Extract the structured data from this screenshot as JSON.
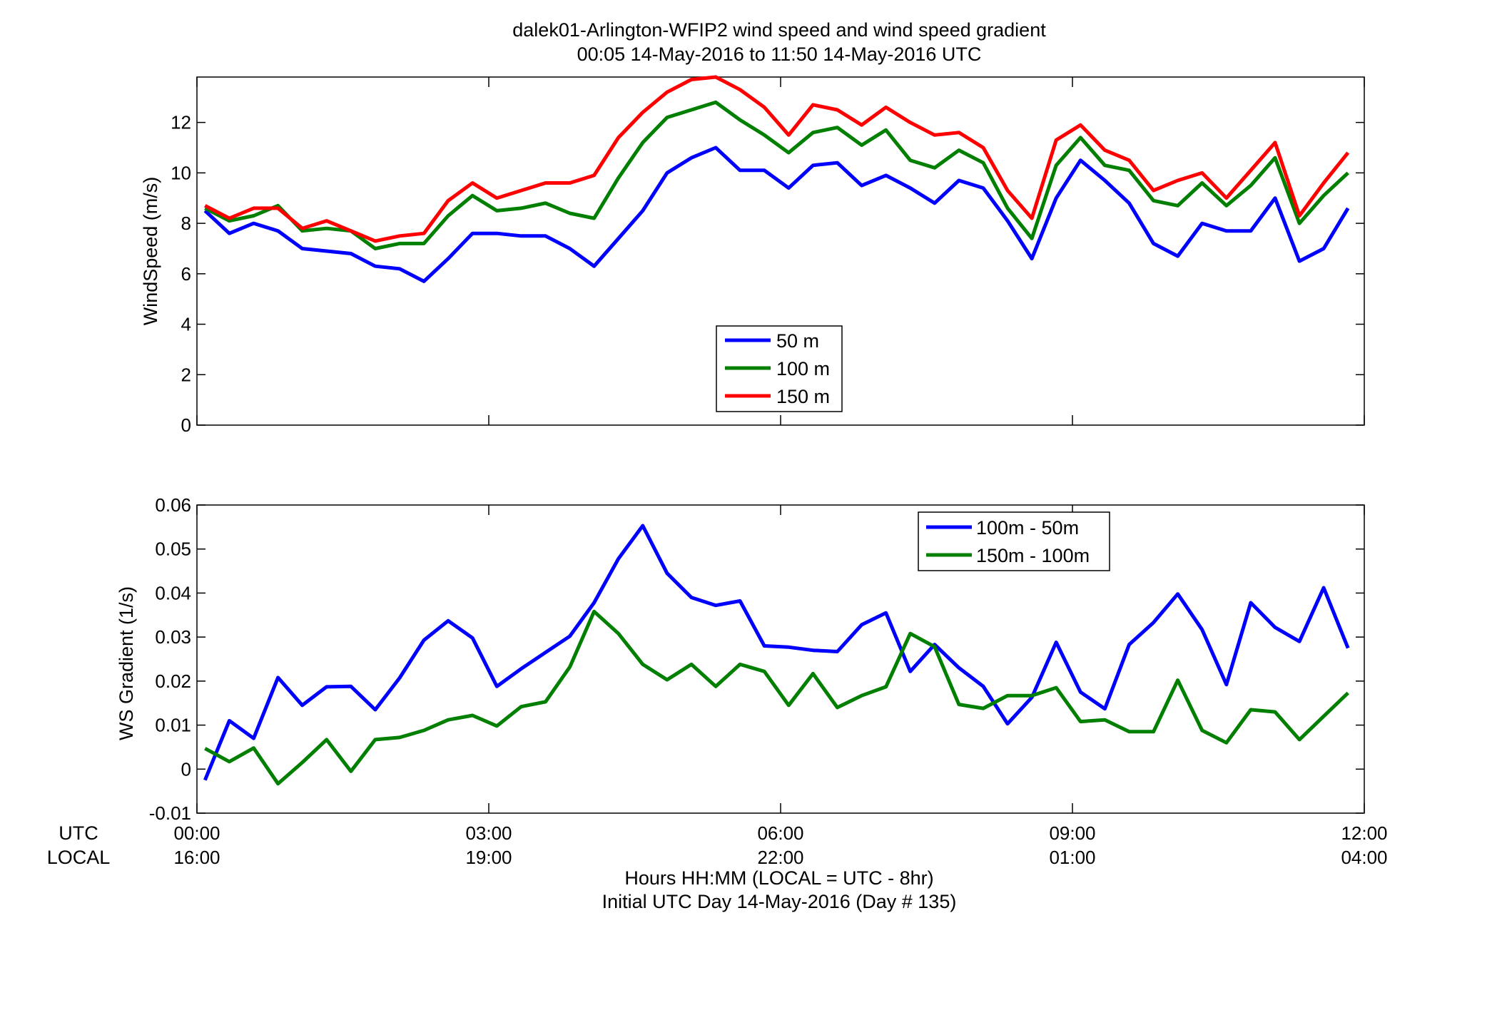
{
  "figure": {
    "title_line1": "dalek01-Arlington-WFIP2  wind speed and wind speed gradient",
    "title_line2": "00:05 14-May-2016 to 11:50 14-May-2016  UTC",
    "utc_row_label": "UTC",
    "local_row_label": "LOCAL",
    "xlabel_line1": "Hours HH:MM  (LOCAL = UTC - 8hr)",
    "xlabel_line2": "Initial UTC Day 14-May-2016 (Day # 135)",
    "utc_ticks": [
      "00:00",
      "03:00",
      "06:00",
      "09:00",
      "12:00"
    ],
    "local_ticks": [
      "16:00",
      "19:00",
      "22:00",
      "01:00",
      "04:00"
    ],
    "x_tick_hours": [
      0,
      3,
      6,
      9,
      12
    ]
  },
  "chart_data": [
    {
      "type": "line",
      "ylabel": "WindSpeed (m/s)",
      "xlim": [
        0,
        12
      ],
      "ylim": [
        0,
        13.8
      ],
      "yticks": [
        0,
        2,
        4,
        6,
        8,
        10,
        12
      ],
      "ytick_labels": [
        "0",
        "2",
        "4",
        "6",
        "8",
        "10",
        "12"
      ],
      "grid": false,
      "legend_position": "center",
      "x_hours": [
        0.083,
        0.333,
        0.583,
        0.833,
        1.083,
        1.333,
        1.583,
        1.833,
        2.083,
        2.333,
        2.583,
        2.833,
        3.083,
        3.333,
        3.583,
        3.833,
        4.083,
        4.333,
        4.583,
        4.833,
        5.083,
        5.333,
        5.583,
        5.833,
        6.083,
        6.333,
        6.583,
        6.833,
        7.083,
        7.333,
        7.583,
        7.833,
        8.083,
        8.333,
        8.583,
        8.833,
        9.083,
        9.333,
        9.583,
        9.833,
        10.083,
        10.333,
        10.583,
        10.833,
        11.083,
        11.333,
        11.583,
        11.833
      ],
      "series": [
        {
          "name": "50 m",
          "color": "#0000ff",
          "values": [
            8.5,
            7.6,
            8.0,
            7.7,
            7.0,
            6.9,
            6.8,
            6.3,
            6.2,
            5.7,
            6.6,
            7.6,
            7.6,
            7.5,
            7.5,
            7.0,
            6.3,
            7.4,
            8.5,
            10.0,
            10.6,
            11.0,
            10.1,
            10.1,
            9.4,
            10.3,
            10.4,
            9.5,
            9.9,
            9.4,
            8.8,
            9.7,
            9.4,
            8.1,
            6.6,
            9.0,
            10.5,
            9.7,
            8.8,
            7.2,
            6.7,
            8.0,
            7.7,
            7.7,
            9.0,
            6.5,
            7.0,
            8.6
          ]
        },
        {
          "name": "100 m",
          "color": "#007f00",
          "values": [
            8.6,
            8.1,
            8.3,
            8.7,
            7.7,
            7.8,
            7.7,
            7.0,
            7.2,
            7.2,
            8.3,
            9.1,
            8.5,
            8.6,
            8.8,
            8.4,
            8.2,
            9.8,
            11.2,
            12.2,
            12.5,
            12.8,
            12.1,
            11.5,
            10.8,
            11.6,
            11.8,
            11.1,
            11.7,
            10.5,
            10.2,
            10.9,
            10.4,
            8.6,
            7.4,
            10.3,
            11.4,
            10.3,
            10.1,
            8.9,
            8.7,
            9.6,
            8.7,
            9.5,
            10.6,
            8.0,
            9.1,
            10.0
          ]
        },
        {
          "name": "150 m",
          "color": "#ff0000",
          "values": [
            8.7,
            8.2,
            8.6,
            8.6,
            7.8,
            8.1,
            7.7,
            7.3,
            7.5,
            7.6,
            8.9,
            9.6,
            9.0,
            9.3,
            9.6,
            9.6,
            9.9,
            11.4,
            12.4,
            13.2,
            13.7,
            13.8,
            13.3,
            12.6,
            11.5,
            12.7,
            12.5,
            11.9,
            12.6,
            12.0,
            11.5,
            11.6,
            11.0,
            9.3,
            8.2,
            11.3,
            11.9,
            10.9,
            10.5,
            9.3,
            9.7,
            10.0,
            9.0,
            10.1,
            11.2,
            8.3,
            9.6,
            10.8
          ]
        }
      ]
    },
    {
      "type": "line",
      "ylabel": "WS Gradient (1/s)",
      "xlim": [
        0,
        12
      ],
      "ylim": [
        -0.01,
        0.06
      ],
      "yticks": [
        -0.01,
        0,
        0.01,
        0.02,
        0.03,
        0.04,
        0.05,
        0.06
      ],
      "ytick_labels": [
        "-0.01",
        "0",
        "0.01",
        "0.02",
        "0.03",
        "0.04",
        "0.05",
        "0.06"
      ],
      "grid": false,
      "legend_position": "top-right",
      "x_hours": [
        0.083,
        0.333,
        0.583,
        0.833,
        1.083,
        1.333,
        1.583,
        1.833,
        2.083,
        2.333,
        2.583,
        2.833,
        3.083,
        3.333,
        3.583,
        3.833,
        4.083,
        4.333,
        4.583,
        4.833,
        5.083,
        5.333,
        5.583,
        5.833,
        6.083,
        6.333,
        6.583,
        6.833,
        7.083,
        7.333,
        7.583,
        7.833,
        8.083,
        8.333,
        8.583,
        8.833,
        9.083,
        9.333,
        9.583,
        9.833,
        10.083,
        10.333,
        10.583,
        10.833,
        11.083,
        11.333,
        11.583,
        11.833
      ],
      "series": [
        {
          "name": "100m - 50m",
          "color": "#0000ff",
          "values": [
            -0.0025,
            0.011,
            0.007,
            0.0208,
            0.0145,
            0.0187,
            0.0188,
            0.0135,
            0.0207,
            0.0293,
            0.0337,
            0.0298,
            0.0188,
            0.0228,
            0.0265,
            0.0302,
            0.0378,
            0.0478,
            0.0553,
            0.0445,
            0.039,
            0.0372,
            0.0382,
            0.028,
            0.0277,
            0.027,
            0.0267,
            0.0328,
            0.0355,
            0.0222,
            0.0283,
            0.023,
            0.0188,
            0.0103,
            0.0163,
            0.0288,
            0.0175,
            0.0137,
            0.0283,
            0.0333,
            0.0398,
            0.0317,
            0.0192,
            0.0378,
            0.0322,
            0.029,
            0.0412,
            0.0275
          ]
        },
        {
          "name": "150m - 100m",
          "color": "#007f00",
          "values": [
            0.0047,
            0.0017,
            0.0048,
            -0.0033,
            0.0015,
            0.0067,
            -0.0005,
            0.0067,
            0.0072,
            0.0088,
            0.0112,
            0.0122,
            0.0098,
            0.0142,
            0.0153,
            0.0232,
            0.0358,
            0.0308,
            0.0238,
            0.0203,
            0.0238,
            0.0188,
            0.0238,
            0.0222,
            0.0145,
            0.0217,
            0.014,
            0.0167,
            0.0187,
            0.0308,
            0.0278,
            0.0147,
            0.0138,
            0.0167,
            0.0167,
            0.0185,
            0.0108,
            0.0112,
            0.0085,
            0.0085,
            0.0202,
            0.0088,
            0.006,
            0.0135,
            0.013,
            0.0067,
            0.012,
            0.0173
          ]
        }
      ]
    }
  ]
}
